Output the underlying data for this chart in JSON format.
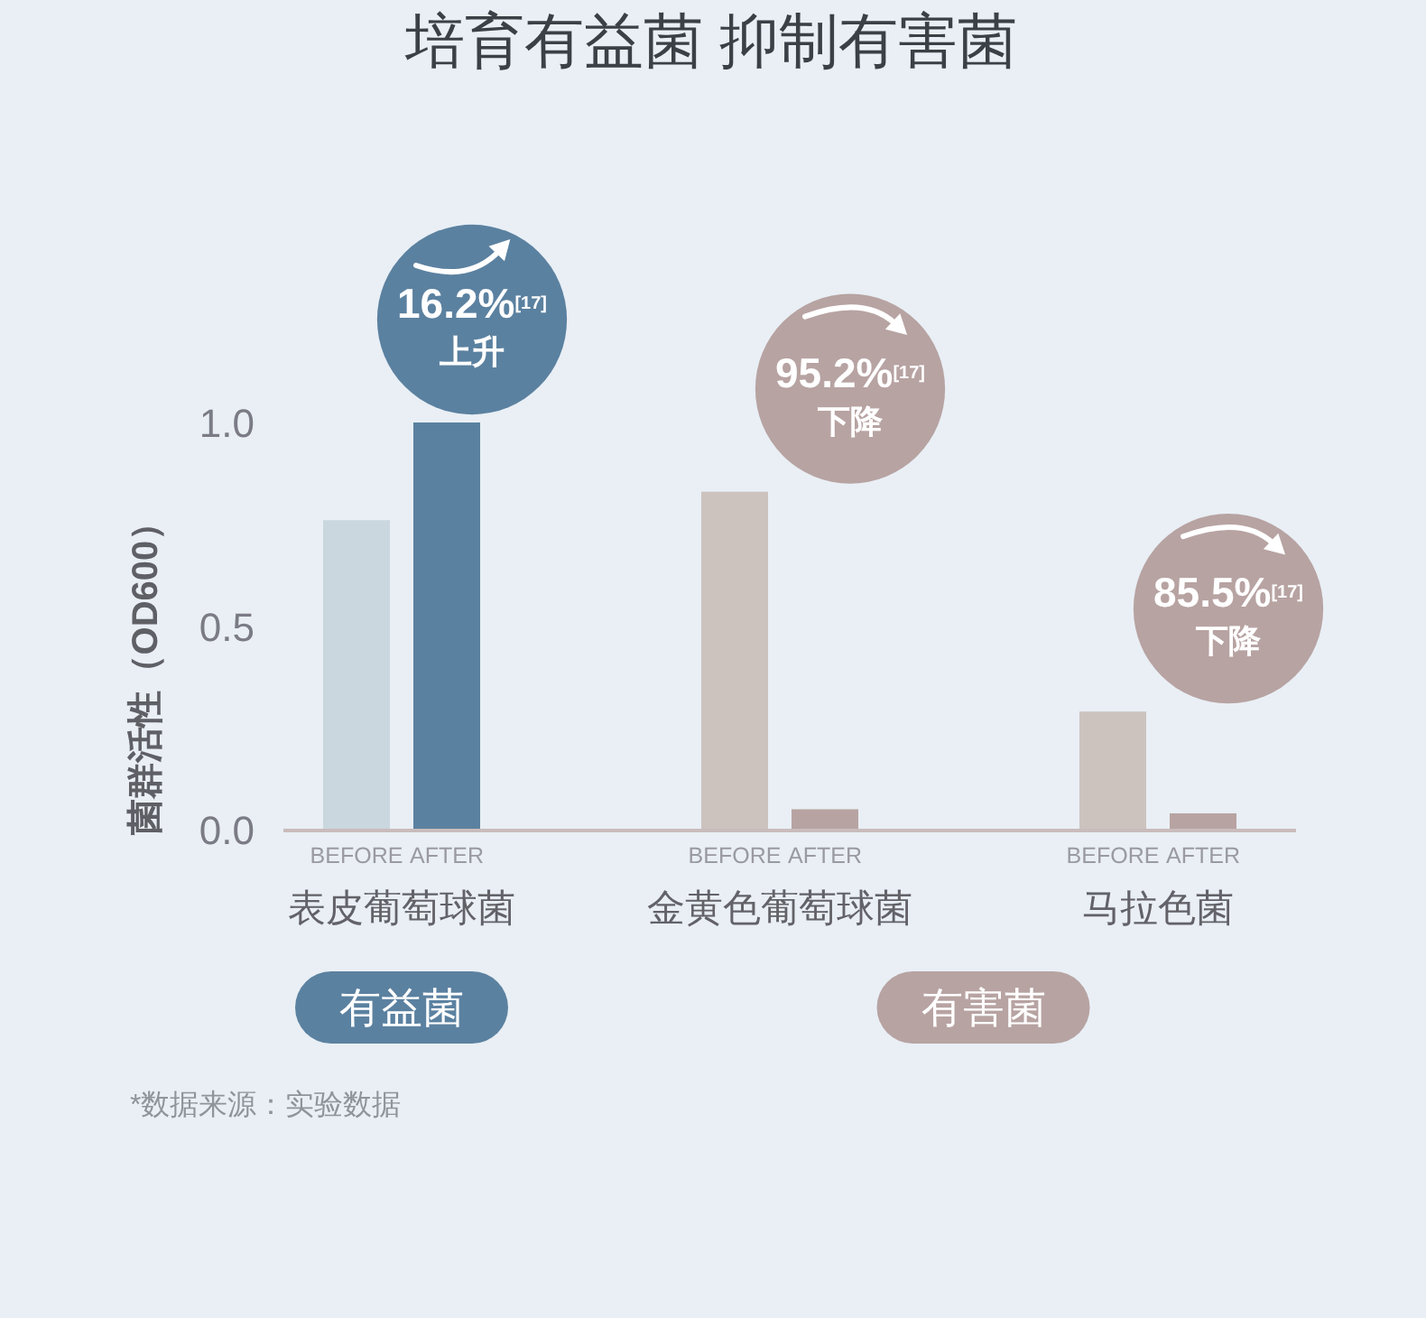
{
  "chart_data": {
    "type": "bar",
    "title": "培育有益菌 抑制有害菌",
    "ylabel": "菌群活性（OD600）",
    "categories": [
      "表皮葡萄球菌",
      "金黄色葡萄球菌",
      "马拉色菌"
    ],
    "series": [
      {
        "name": "BEFORE",
        "colors": [
          "#cad7de",
          "#ccc3bf",
          "#ccc3bf"
        ],
        "values": [
          0.76,
          0.83,
          0.29
        ]
      },
      {
        "name": "AFTER",
        "colors": [
          "#5b81a0",
          "#b7a3a2",
          "#b7a3a2"
        ],
        "values": [
          1.0,
          0.05,
          0.04
        ]
      }
    ],
    "ylim": [
      0,
      1.0
    ],
    "yticks": [
      {
        "value": 0,
        "label": "0.0"
      },
      {
        "value": 0.5,
        "label": "0.5"
      },
      {
        "value": 1,
        "label": "1.0"
      }
    ],
    "annotations": [
      "16.2%$^{[17]}$\n上升",
      "95.2%$^{[17]}$\n下降",
      "85.5%$^{[17]}$\n下降",
      "有益菌",
      "有害菌",
      "*数据来源：实验数据"
    ]
  }
}
